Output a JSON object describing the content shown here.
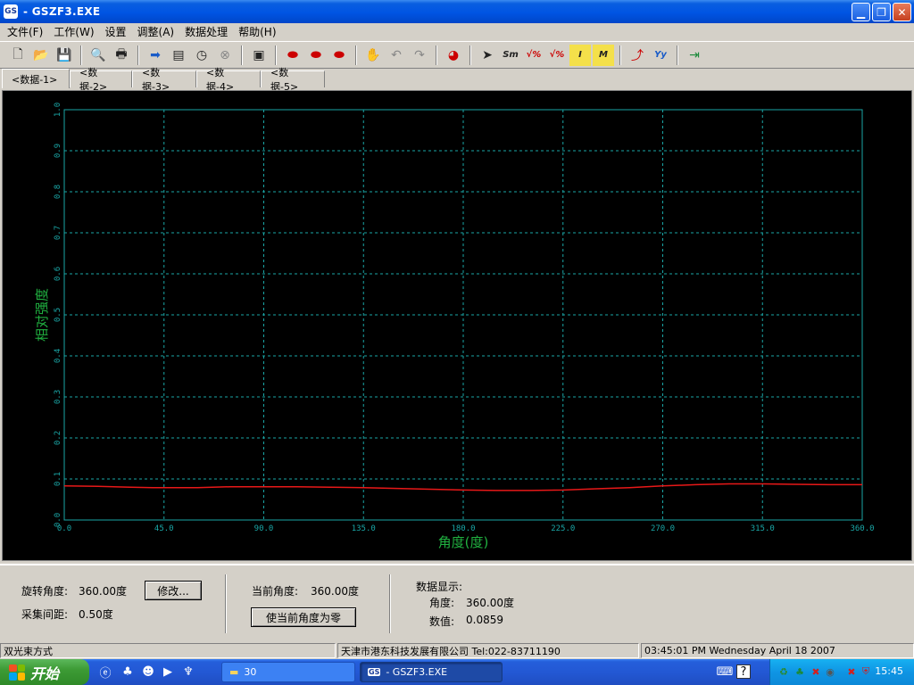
{
  "window": {
    "icon_label": "GS",
    "title": "- GSZF3.EXE"
  },
  "menu": [
    {
      "label": "文件(F)"
    },
    {
      "label": "工作(W)"
    },
    {
      "label": "设置"
    },
    {
      "label": "调整(A)"
    },
    {
      "label": "数据处理"
    },
    {
      "label": "帮助(H)"
    }
  ],
  "tabs": [
    {
      "label": "<数据-1>"
    },
    {
      "label": "<数据-2>"
    },
    {
      "label": "<数据-3>"
    },
    {
      "label": "<数据-4>"
    },
    {
      "label": "<数据-5>"
    }
  ],
  "chart_data": {
    "type": "line",
    "xlabel": "角度(度)",
    "ylabel": "相对强度",
    "xlim": [
      0,
      360
    ],
    "ylim": [
      0,
      1
    ],
    "x_ticks": [
      "0.0",
      "45.0",
      "90.0",
      "135.0",
      "180.0",
      "225.0",
      "270.0",
      "315.0",
      "360.0"
    ],
    "y_ticks": [
      "0.0",
      "0.1",
      "0.2",
      "0.3",
      "0.4",
      "0.5",
      "0.6",
      "0.7",
      "0.8",
      "0.9",
      "1.0"
    ],
    "grid": true,
    "series": [
      {
        "color": "#e81818",
        "x": [
          0,
          15,
          30,
          40,
          45,
          60,
          75,
          90,
          105,
          120,
          135,
          150,
          165,
          180,
          195,
          210,
          225,
          240,
          255,
          270,
          285,
          300,
          315,
          330,
          345,
          360
        ],
        "y": [
          0.083,
          0.082,
          0.08,
          0.079,
          0.079,
          0.079,
          0.081,
          0.081,
          0.081,
          0.08,
          0.079,
          0.077,
          0.075,
          0.073,
          0.072,
          0.072,
          0.073,
          0.076,
          0.079,
          0.083,
          0.086,
          0.088,
          0.088,
          0.087,
          0.086,
          0.086
        ]
      }
    ]
  },
  "panel": {
    "rotation_label": "旋转角度:",
    "rotation_value": "360.00度",
    "modify_button": "修改...",
    "interval_label": "采集间距:",
    "interval_value": "0.50度",
    "current_angle_label": "当前角度:",
    "current_angle_value": "360.00度",
    "zero_button": "使当前角度为零",
    "data_display_label": "数据显示:",
    "angle_label": "角度:",
    "angle_value": "360.00度",
    "value_label": "数值:",
    "value_value": "0.0859"
  },
  "status": {
    "mode": "双光束方式",
    "company": "天津市港东科技发展有限公司 Tel:022-83711190",
    "datetime": "03:45:01 PM  Wednesday April 18 2007"
  },
  "taskbar": {
    "start_label": "开始",
    "tasks": [
      {
        "label": "30"
      },
      {
        "label": "- GSZF3.EXE"
      }
    ],
    "clock": "15:45"
  }
}
